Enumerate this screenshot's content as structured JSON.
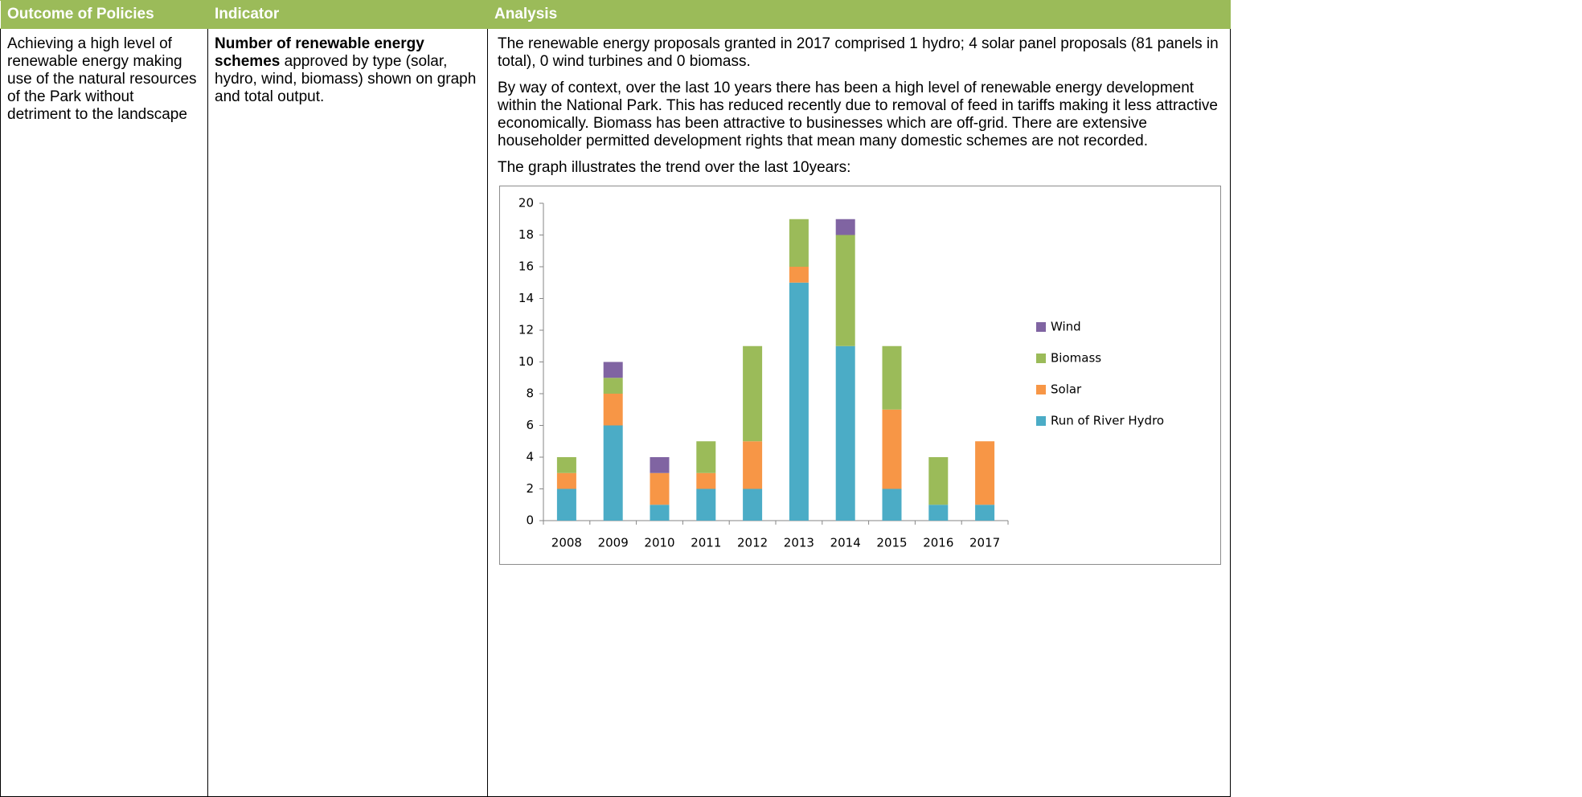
{
  "table": {
    "headers": [
      "Outcome of Policies",
      "Indicator",
      "Analysis"
    ],
    "outcome": "Achieving a high level of renewable energy making use of the natural resources of the Park without detriment to the landscape",
    "indicator_bold": "Number of renewable energy schemes",
    "indicator_rest": "approved by type (solar, hydro, wind, biomass) shown on graph and total output.",
    "analysis": [
      "The renewable energy proposals granted in 2017 comprised 1 hydro; 4 solar panel proposals (81 panels in total), 0 wind turbines and 0 biomass.",
      "By way of context, over the last 10 years there has been a high level of renewable energy development within the National Park. This has reduced recently due to removal of feed in tariffs making it less attractive economically. Biomass has been attractive to businesses which are off-grid. There are extensive householder permitted development rights that mean many domestic schemes are not recorded.",
      "The graph illustrates the trend over the last 10years:"
    ]
  },
  "chart_data": {
    "type": "stacked_bar",
    "categories": [
      "2008",
      "2009",
      "2010",
      "2011",
      "2012",
      "2013",
      "2014",
      "2015",
      "2016",
      "2017"
    ],
    "series": [
      {
        "name": "Run of River Hydro",
        "color": "#4bacc6",
        "values": [
          2,
          6,
          1,
          2,
          2,
          15,
          11,
          2,
          1,
          1
        ]
      },
      {
        "name": "Solar",
        "color": "#f79646",
        "values": [
          1,
          2,
          2,
          1,
          3,
          1,
          0,
          5,
          0,
          4
        ]
      },
      {
        "name": "Biomass",
        "color": "#9bbb59",
        "values": [
          1,
          1,
          0,
          2,
          6,
          3,
          7,
          4,
          3,
          0
        ]
      },
      {
        "name": "Wind",
        "color": "#8064a2",
        "values": [
          0,
          1,
          1,
          0,
          0,
          0,
          1,
          0,
          0,
          0
        ]
      }
    ],
    "ylim": [
      0,
      20
    ],
    "yticks": [
      0,
      2,
      4,
      6,
      8,
      10,
      12,
      14,
      16,
      18,
      20
    ],
    "legend": "right",
    "grid": false
  }
}
